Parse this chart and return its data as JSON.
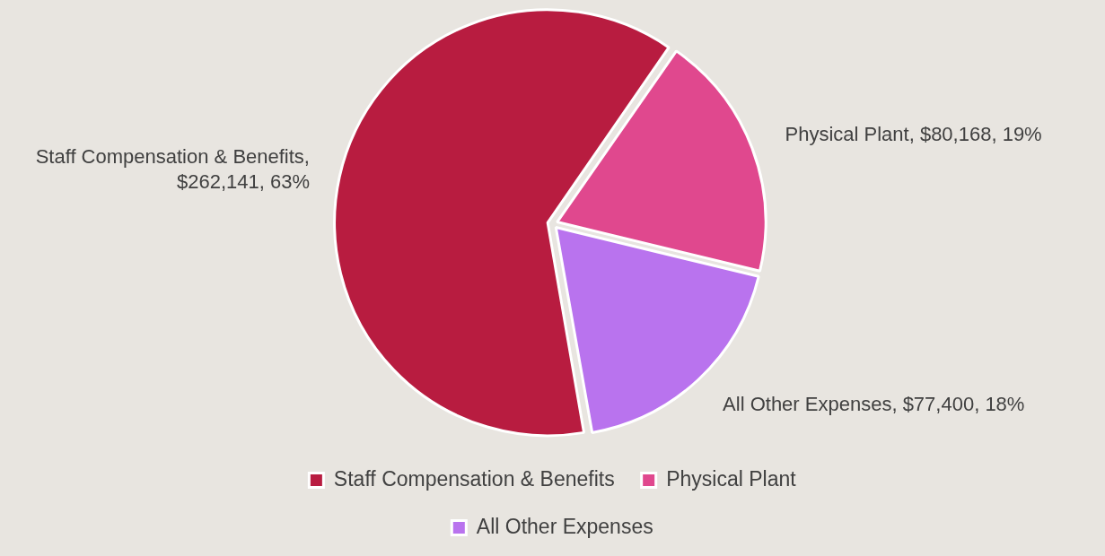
{
  "chart_data": {
    "type": "pie",
    "categories": [
      "Staff Compensation & Benefits",
      "Physical Plant",
      "All Other Expenses"
    ],
    "values": [
      262141,
      80168,
      77400
    ],
    "colors": [
      "#b81c40",
      "#e0488e",
      "#b973ee"
    ],
    "value_labels": [
      "Staff Compensation & Benefits, $262,141, 63%",
      "Physical Plant, $80,168, 19%",
      "All Other Expenses, $77,400, 18%"
    ],
    "legend": "bottom"
  }
}
